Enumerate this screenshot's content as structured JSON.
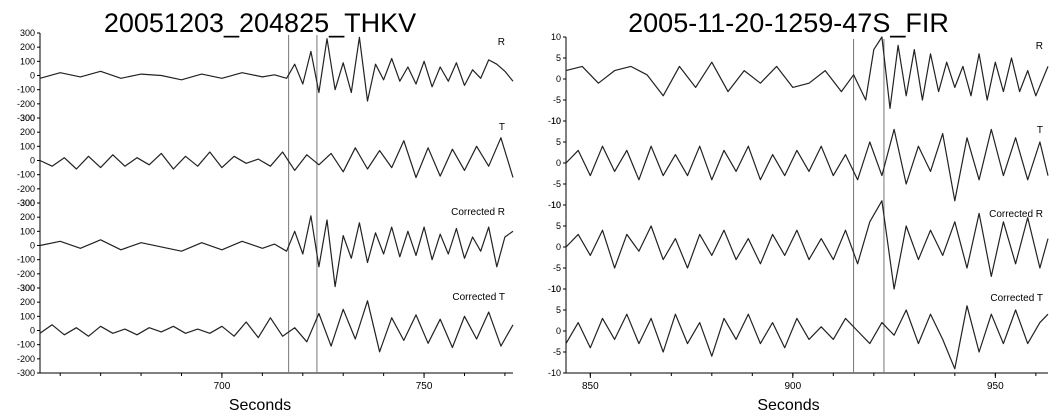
{
  "chart_data": [
    {
      "type": "line",
      "title": "20051203_204825_THKV",
      "xlabel": "Seconds",
      "xlim": [
        655,
        772
      ],
      "xticks": [
        "700",
        "750"
      ],
      "ylim": [
        -300,
        300
      ],
      "yticks": [
        "300",
        "200",
        "100",
        "0",
        "-100",
        "-200",
        "-300"
      ],
      "vlines": [
        716.5,
        723.5
      ],
      "series": [
        {
          "name": "R",
          "x": [
            655,
            660,
            665,
            670,
            675,
            680,
            685,
            690,
            695,
            700,
            705,
            710,
            713,
            716,
            718,
            720,
            722,
            724,
            726,
            728,
            730,
            732,
            734,
            736,
            738,
            740,
            742,
            744,
            746,
            748,
            750,
            752,
            754,
            756,
            758,
            760,
            762,
            764,
            766,
            768,
            770,
            772
          ],
          "y": [
            -20,
            20,
            -10,
            30,
            -20,
            10,
            0,
            -30,
            10,
            -20,
            20,
            -10,
            5,
            -20,
            80,
            -60,
            170,
            -120,
            260,
            -100,
            90,
            -120,
            270,
            -180,
            80,
            -30,
            120,
            -40,
            60,
            -60,
            100,
            -80,
            60,
            -40,
            90,
            -70,
            40,
            -20,
            110,
            80,
            30,
            -40
          ]
        },
        {
          "name": "T",
          "x": [
            655,
            658,
            661,
            664,
            667,
            670,
            673,
            676,
            679,
            682,
            685,
            688,
            691,
            694,
            697,
            700,
            703,
            706,
            709,
            712,
            715,
            718,
            721,
            724,
            727,
            730,
            733,
            736,
            739,
            742,
            745,
            748,
            751,
            754,
            757,
            760,
            763,
            766,
            769,
            772
          ],
          "y": [
            0,
            -40,
            20,
            -60,
            30,
            -50,
            40,
            -40,
            20,
            -30,
            50,
            -60,
            30,
            -40,
            60,
            -50,
            30,
            -20,
            10,
            -40,
            60,
            -70,
            40,
            -30,
            50,
            -80,
            90,
            -60,
            70,
            -50,
            140,
            -120,
            90,
            -110,
            80,
            -70,
            100,
            -40,
            160,
            -120
          ]
        },
        {
          "name": "Corrected R",
          "x": [
            655,
            660,
            665,
            670,
            675,
            680,
            685,
            690,
            695,
            700,
            705,
            710,
            713,
            716,
            718,
            720,
            722,
            724,
            726,
            728,
            730,
            732,
            734,
            736,
            738,
            740,
            742,
            744,
            746,
            748,
            750,
            752,
            754,
            756,
            758,
            760,
            762,
            764,
            766,
            768,
            770,
            772
          ],
          "y": [
            0,
            30,
            -20,
            40,
            -30,
            20,
            -10,
            -40,
            20,
            -30,
            30,
            -20,
            10,
            -40,
            100,
            -60,
            210,
            -150,
            180,
            -290,
            70,
            -90,
            160,
            -120,
            90,
            -60,
            130,
            -80,
            100,
            -70,
            130,
            -100,
            80,
            -60,
            120,
            -90,
            60,
            -40,
            130,
            -150,
            60,
            100
          ]
        },
        {
          "name": "Corrected T",
          "x": [
            655,
            658,
            661,
            664,
            667,
            670,
            673,
            676,
            679,
            682,
            685,
            688,
            691,
            694,
            697,
            700,
            703,
            706,
            709,
            712,
            715,
            718,
            721,
            724,
            727,
            730,
            733,
            736,
            739,
            742,
            745,
            748,
            751,
            754,
            757,
            760,
            763,
            766,
            769,
            772
          ],
          "y": [
            -20,
            40,
            -30,
            20,
            -40,
            30,
            -20,
            10,
            -30,
            20,
            -10,
            30,
            -20,
            10,
            -20,
            30,
            -40,
            60,
            -50,
            90,
            -40,
            20,
            -80,
            120,
            -110,
            150,
            -60,
            210,
            -150,
            90,
            -70,
            110,
            -90,
            80,
            -120,
            100,
            -60,
            130,
            -110,
            40
          ]
        }
      ]
    },
    {
      "type": "line",
      "title": "2005-11-20-1259-47S_FIR",
      "xlabel": "Seconds",
      "xlim": [
        844,
        963
      ],
      "xticks": [
        "850",
        "900",
        "950"
      ],
      "ylim": [
        -10,
        10
      ],
      "yticks": [
        "10",
        "5",
        "0",
        "-5",
        "-10"
      ],
      "vlines": [
        915,
        922.5
      ],
      "series": [
        {
          "name": "R",
          "x": [
            844,
            848,
            852,
            856,
            860,
            864,
            868,
            872,
            876,
            880,
            884,
            888,
            892,
            896,
            900,
            904,
            908,
            912,
            915,
            918,
            920,
            922,
            924,
            926,
            928,
            930,
            932,
            934,
            936,
            938,
            940,
            942,
            944,
            946,
            948,
            950,
            952,
            954,
            956,
            958,
            960,
            963
          ],
          "y": [
            2,
            3,
            -1,
            2,
            3,
            1,
            -4,
            3,
            -2,
            4,
            -3,
            2,
            -1,
            3,
            -2,
            -1,
            2,
            -3,
            1,
            -5,
            7,
            10,
            -7,
            8,
            -4,
            7,
            -5,
            6,
            -3,
            4,
            -2,
            3,
            -4,
            6,
            -5,
            4,
            -3,
            5,
            -3,
            2,
            -4,
            3
          ]
        },
        {
          "name": "T",
          "x": [
            844,
            847,
            850,
            853,
            856,
            859,
            862,
            865,
            868,
            871,
            874,
            877,
            880,
            883,
            886,
            889,
            892,
            895,
            898,
            901,
            904,
            907,
            910,
            913,
            916,
            919,
            922,
            925,
            928,
            931,
            934,
            937,
            940,
            943,
            946,
            949,
            952,
            955,
            958,
            961,
            963
          ],
          "y": [
            0,
            3,
            -3,
            4,
            -2,
            3,
            -4,
            4,
            -3,
            2,
            -3,
            4,
            -4,
            3,
            -2,
            4,
            -4,
            2,
            -3,
            3,
            -2,
            4,
            -3,
            2,
            -4,
            5,
            -3,
            8,
            -5,
            4,
            -2,
            7,
            -9,
            6,
            -4,
            8,
            -3,
            6,
            -4,
            5,
            -3
          ]
        },
        {
          "name": "Corrected R",
          "x": [
            844,
            847,
            850,
            853,
            856,
            859,
            862,
            865,
            868,
            871,
            874,
            877,
            880,
            883,
            886,
            889,
            892,
            895,
            898,
            901,
            904,
            907,
            910,
            913,
            916,
            919,
            922,
            925,
            928,
            931,
            934,
            937,
            940,
            943,
            946,
            949,
            952,
            955,
            958,
            961,
            963
          ],
          "y": [
            0,
            3,
            -2,
            4,
            -5,
            3,
            -1,
            5,
            -3,
            2,
            -5,
            3,
            -2,
            4,
            -3,
            2,
            -4,
            3,
            -2,
            4,
            -3,
            2,
            -3,
            4,
            -4,
            6,
            11,
            -10,
            5,
            -3,
            4,
            -2,
            6,
            -5,
            8,
            -7,
            6,
            -4,
            7,
            -5,
            2
          ]
        },
        {
          "name": "Corrected T",
          "x": [
            844,
            847,
            850,
            853,
            856,
            859,
            862,
            865,
            868,
            871,
            874,
            877,
            880,
            883,
            886,
            889,
            892,
            895,
            898,
            901,
            904,
            907,
            910,
            913,
            916,
            919,
            922,
            925,
            928,
            931,
            934,
            937,
            940,
            943,
            946,
            949,
            952,
            955,
            958,
            961,
            963
          ],
          "y": [
            -3,
            2,
            -4,
            3,
            -2,
            4,
            -3,
            3,
            -5,
            4,
            -3,
            2,
            -6,
            3,
            -2,
            4,
            -3,
            2,
            -4,
            3,
            -2,
            1,
            -2,
            3,
            0,
            -3,
            2,
            -1,
            5,
            -3,
            4,
            -2,
            -9,
            6,
            -5,
            4,
            -3,
            5,
            -3,
            2,
            4
          ]
        }
      ]
    }
  ]
}
